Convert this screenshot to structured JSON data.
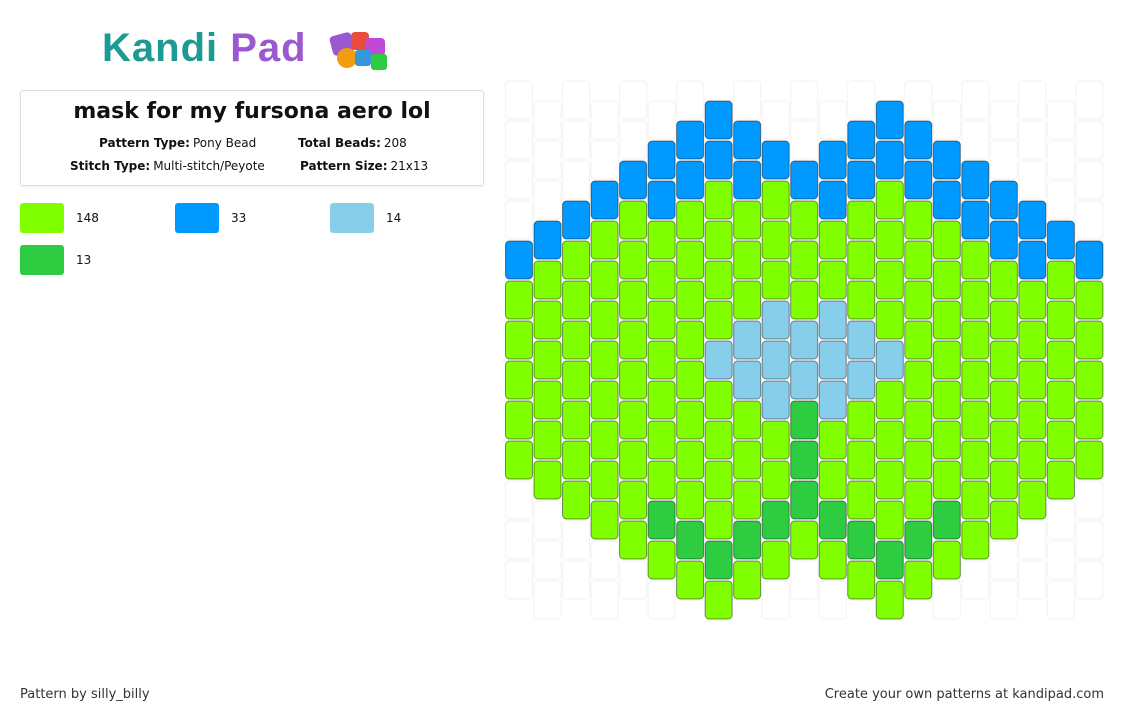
{
  "logo": {
    "part1": "Kandi",
    "part2": "Pad"
  },
  "title": "mask for my fursona aero lol",
  "info": [
    {
      "label": "Pattern Type:",
      "value": "Pony Bead"
    },
    {
      "label": "Total Beads:",
      "value": "208"
    },
    {
      "label": "Stitch Type:",
      "value": "Multi-stitch/Peyote"
    },
    {
      "label": "Pattern Size:",
      "value": "21x13"
    }
  ],
  "legend": [
    {
      "color": "#80ff00",
      "count": "148"
    },
    {
      "color": "#0099ff",
      "count": "33"
    },
    {
      "color": "#87ceeb",
      "count": "14"
    },
    {
      "color": "#2ecc40",
      "count": "13"
    }
  ],
  "footer": {
    "left": "Pattern by silly_billy",
    "right": "Create your own patterns at kandipad.com"
  }
}
